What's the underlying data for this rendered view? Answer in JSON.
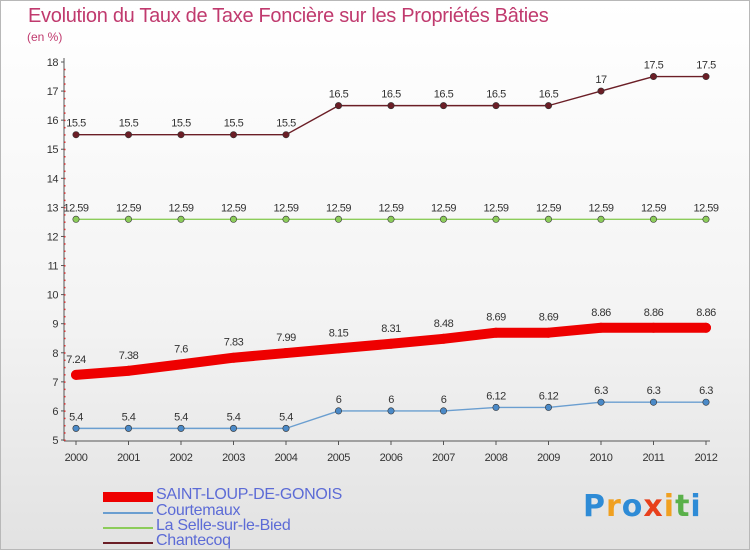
{
  "title": "Evolution du Taux de Taxe Foncière sur les Propriétés Bâties",
  "subtitle": "(en %)",
  "logo": {
    "letters": [
      "P",
      "r",
      "o",
      "x",
      "i",
      "t",
      "i"
    ],
    "colors": [
      "#2e8bd6",
      "#f0a020",
      "#2e8bd6",
      "#e8401c",
      "#f0a020",
      "#5ab04a",
      "#2e8bd6"
    ]
  },
  "chart_data": {
    "type": "line",
    "title": "Evolution du Taux de Taxe Foncière sur les Propriétés Bâties",
    "ylabel": "(en %)",
    "xlabel": "",
    "x": [
      "2000",
      "2001",
      "2002",
      "2003",
      "2004",
      "2005",
      "2006",
      "2007",
      "2008",
      "2009",
      "2010",
      "2011",
      "2012"
    ],
    "ylim": [
      5,
      18
    ],
    "yticks": [
      "5",
      "6",
      "7",
      "8",
      "9",
      "10",
      "11",
      "12",
      "13",
      "14",
      "15",
      "16",
      "17",
      "18"
    ],
    "grid": false,
    "legend": "bottom-left",
    "series": [
      {
        "name": "Chantecoq",
        "color": "#6b1e26",
        "marker_fill": "#6b1e26",
        "values": [
          15.5,
          15.5,
          15.5,
          15.5,
          15.5,
          16.5,
          16.5,
          16.5,
          16.5,
          16.5,
          17,
          17.5,
          17.5
        ],
        "labels": [
          "15.5",
          "15.5",
          "15.5",
          "15.5",
          "15.5",
          "16.5",
          "16.5",
          "16.5",
          "16.5",
          "16.5",
          "17",
          "17.5",
          "17.5"
        ]
      },
      {
        "name": "La Selle-sur-le-Bied",
        "color": "#8ccc5a",
        "marker_fill": "#8ccc5a",
        "values": [
          12.59,
          12.59,
          12.59,
          12.59,
          12.59,
          12.59,
          12.59,
          12.59,
          12.59,
          12.59,
          12.59,
          12.59,
          12.59
        ],
        "labels": [
          "12.59",
          "12.59",
          "12.59",
          "12.59",
          "12.59",
          "12.59",
          "12.59",
          "12.59",
          "12.59",
          "12.59",
          "12.59",
          "12.59",
          "12.59"
        ]
      },
      {
        "name": "SAINT-LOUP-DE-GONOIS",
        "color": "#ee0000",
        "marker_fill": "#ee0000",
        "values": [
          7.24,
          7.38,
          7.6,
          7.83,
          7.99,
          8.15,
          8.31,
          8.48,
          8.69,
          8.69,
          8.86,
          8.86,
          8.86
        ],
        "labels": [
          "7.24",
          "7.38",
          "7.6",
          "7.83",
          "7.99",
          "8.15",
          "8.31",
          "8.48",
          "8.69",
          "8.69",
          "8.86",
          "8.86",
          "8.86"
        ]
      },
      {
        "name": "Courtemaux",
        "color": "#6a9ed0",
        "marker_fill": "#4b8ac8",
        "values": [
          5.4,
          5.4,
          5.4,
          5.4,
          5.4,
          6,
          6,
          6,
          6.12,
          6.12,
          6.3,
          6.3,
          6.3
        ],
        "labels": [
          "5.4",
          "5.4",
          "5.4",
          "5.4",
          "5.4",
          "6",
          "6",
          "6",
          "6.12",
          "6.12",
          "6.3",
          "6.3",
          "6.3"
        ]
      }
    ]
  },
  "legend": [
    {
      "label": "SAINT-LOUP-DE-GONOIS",
      "color": "#ee0000",
      "weight": "thick"
    },
    {
      "label": "Courtemaux",
      "color": "#6a9ed0",
      "weight": "thin"
    },
    {
      "label": "La Selle-sur-le-Bied",
      "color": "#8ccc5a",
      "weight": "thin"
    },
    {
      "label": "Chantecoq",
      "color": "#6b1e26",
      "weight": "thin"
    }
  ]
}
